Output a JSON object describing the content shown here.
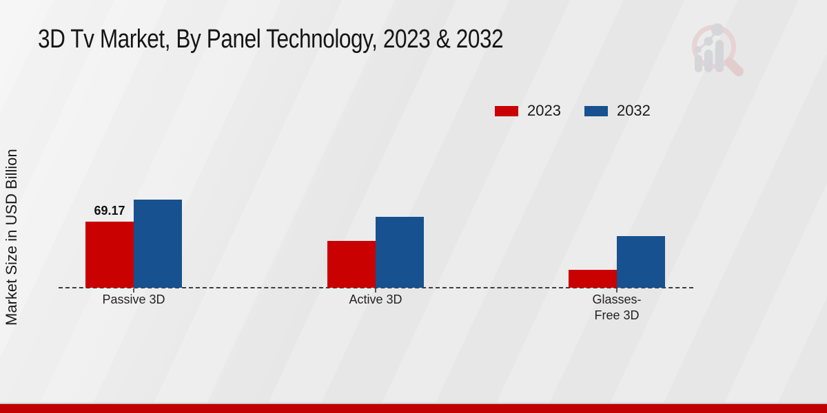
{
  "title": "3D Tv Market, By Panel Technology, 2023 & 2032",
  "axis": {
    "y_label": "Market Size in USD Billion"
  },
  "legend": {
    "position": "top-right",
    "items": [
      {
        "label": "2023"
      },
      {
        "label": "2032"
      }
    ]
  },
  "watermark": {
    "icon": "magnifier-bar-chart-logo",
    "ring_color": "#e7d0d0",
    "bars_color": "#d2d3d7"
  },
  "colors": {
    "series_2023": "#c90101",
    "series_2032": "#17518f",
    "footer_band": "#c10101",
    "baseline": "#3d3d3d",
    "background": "#eaeaea"
  },
  "chart_data": {
    "type": "bar",
    "title": "3D Tv Market, By Panel Technology, 2023 & 2032",
    "ylabel": "Market Size in USD Billion",
    "categories": [
      "Passive 3D",
      "Active 3D",
      "Glasses-Free 3D"
    ],
    "series": [
      {
        "name": "2023",
        "color": "#c90101",
        "values": [
          69.17,
          49.0,
          18.7
        ]
      },
      {
        "name": "2032",
        "color": "#17518f",
        "values": [
          92.2,
          74.2,
          54.0
        ]
      }
    ],
    "data_labels": [
      {
        "series": "2023",
        "category": "Passive 3D",
        "text": "69.17"
      }
    ],
    "ylim": [
      0,
      100
    ],
    "y_axis_ticks_visible": false,
    "gridlines": false,
    "baseline_style": "dashed",
    "legend_position": "top-right"
  }
}
